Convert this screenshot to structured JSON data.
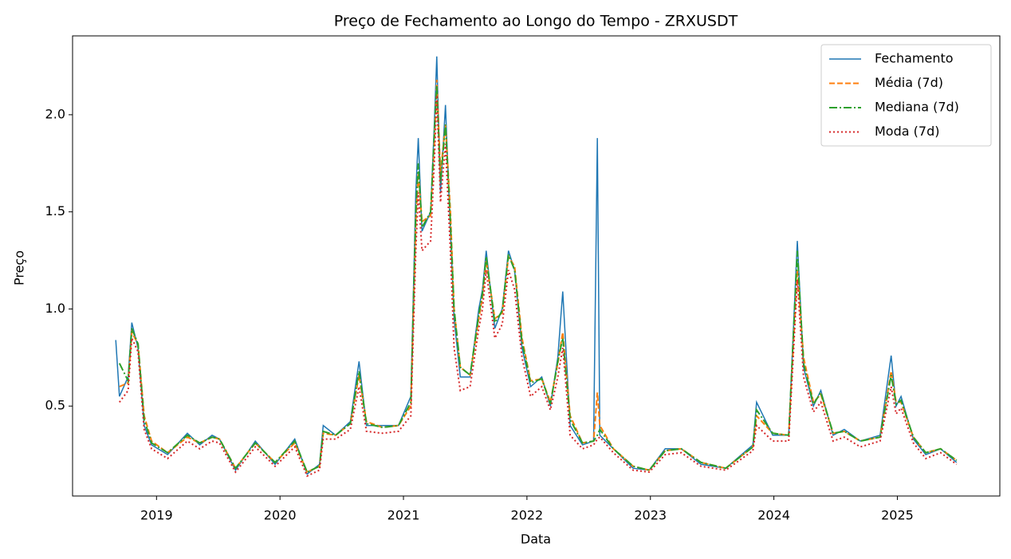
{
  "chart_data": {
    "type": "line",
    "title": "Preço de Fechamento ao Longo do Tempo - ZRXUSDT",
    "xlabel": "Data",
    "ylabel": "Preço",
    "x": [
      2018.67,
      2018.7,
      2018.77,
      2018.8,
      2018.85,
      2018.9,
      2018.96,
      2019.09,
      2019.25,
      2019.35,
      2019.45,
      2019.51,
      2019.64,
      2019.8,
      2019.96,
      2020.12,
      2020.22,
      2020.32,
      2020.35,
      2020.45,
      2020.57,
      2020.64,
      2020.7,
      2020.83,
      2020.96,
      2021.06,
      2021.1,
      2021.12,
      2021.15,
      2021.22,
      2021.25,
      2021.27,
      2021.3,
      2021.34,
      2021.38,
      2021.41,
      2021.46,
      2021.54,
      2021.61,
      2021.64,
      2021.67,
      2021.74,
      2021.8,
      2021.85,
      2021.9,
      2021.96,
      2022.03,
      2022.12,
      2022.19,
      2022.25,
      2022.29,
      2022.35,
      2022.45,
      2022.54,
      2022.57,
      2022.59,
      2022.7,
      2022.86,
      2022.99,
      2023.12,
      2023.25,
      2023.41,
      2023.61,
      2023.83,
      2023.86,
      2023.99,
      2024.12,
      2024.19,
      2024.24,
      2024.32,
      2024.38,
      2024.48,
      2024.57,
      2024.7,
      2024.86,
      2024.95,
      2024.99,
      2025.03,
      2025.13,
      2025.23,
      2025.35,
      2025.48
    ],
    "series": [
      {
        "name": "Fechamento",
        "color": "#1f77b4",
        "dash": "solid",
        "values": [
          0.84,
          0.55,
          0.65,
          0.93,
          0.8,
          0.4,
          0.3,
          0.25,
          0.36,
          0.3,
          0.35,
          0.33,
          0.17,
          0.32,
          0.2,
          0.33,
          0.15,
          0.2,
          0.4,
          0.35,
          0.42,
          0.73,
          0.4,
          0.4,
          0.4,
          0.55,
          1.6,
          1.88,
          1.4,
          1.5,
          1.95,
          2.3,
          1.6,
          2.05,
          1.4,
          0.95,
          0.65,
          0.65,
          1.0,
          1.1,
          1.3,
          0.9,
          1.0,
          1.3,
          1.2,
          0.8,
          0.6,
          0.65,
          0.5,
          0.75,
          1.09,
          0.4,
          0.3,
          0.32,
          1.88,
          0.35,
          0.28,
          0.18,
          0.17,
          0.28,
          0.28,
          0.2,
          0.18,
          0.3,
          0.52,
          0.35,
          0.35,
          1.35,
          0.7,
          0.5,
          0.58,
          0.35,
          0.38,
          0.32,
          0.35,
          0.76,
          0.5,
          0.55,
          0.33,
          0.25,
          0.28,
          0.21
        ]
      },
      {
        "name": "Média (7d)",
        "color": "#ff7f0e",
        "dash": "dashed",
        "values": [
          null,
          0.6,
          0.62,
          0.88,
          0.82,
          0.45,
          0.32,
          0.26,
          0.34,
          0.31,
          0.34,
          0.33,
          0.18,
          0.31,
          0.21,
          0.31,
          0.16,
          0.19,
          0.36,
          0.35,
          0.41,
          0.66,
          0.42,
          0.39,
          0.4,
          0.5,
          1.45,
          1.7,
          1.45,
          1.48,
          1.85,
          2.18,
          1.7,
          1.95,
          1.5,
          1.0,
          0.7,
          0.66,
          0.95,
          1.06,
          1.25,
          0.95,
          0.98,
          1.27,
          1.22,
          0.85,
          0.63,
          0.64,
          0.52,
          0.72,
          0.88,
          0.45,
          0.31,
          0.32,
          0.57,
          0.4,
          0.28,
          0.19,
          0.17,
          0.27,
          0.28,
          0.21,
          0.18,
          0.29,
          0.45,
          0.36,
          0.35,
          1.2,
          0.75,
          0.52,
          0.56,
          0.36,
          0.37,
          0.32,
          0.34,
          0.68,
          0.52,
          0.52,
          0.34,
          0.26,
          0.28,
          0.22
        ]
      },
      {
        "name": "Mediana (7d)",
        "color": "#2ca02c",
        "dash": "dashdot",
        "values": [
          null,
          0.72,
          0.63,
          0.9,
          0.82,
          0.43,
          0.31,
          0.26,
          0.35,
          0.31,
          0.34,
          0.33,
          0.18,
          0.31,
          0.21,
          0.32,
          0.16,
          0.19,
          0.37,
          0.35,
          0.41,
          0.68,
          0.41,
          0.39,
          0.4,
          0.52,
          1.5,
          1.75,
          1.42,
          1.5,
          1.9,
          2.15,
          1.65,
          1.95,
          1.45,
          1.0,
          0.7,
          0.66,
          0.97,
          1.08,
          1.27,
          0.93,
          0.99,
          1.28,
          1.2,
          0.83,
          0.62,
          0.64,
          0.51,
          0.73,
          0.85,
          0.43,
          0.31,
          0.32,
          0.35,
          0.38,
          0.28,
          0.19,
          0.17,
          0.27,
          0.28,
          0.21,
          0.18,
          0.29,
          0.48,
          0.36,
          0.35,
          1.3,
          0.72,
          0.51,
          0.57,
          0.36,
          0.37,
          0.32,
          0.34,
          0.66,
          0.51,
          0.53,
          0.34,
          0.26,
          0.28,
          0.22
        ]
      },
      {
        "name": "Moda (7d)",
        "color": "#d62728",
        "dash": "dotted",
        "values": [
          null,
          0.52,
          0.58,
          0.85,
          0.78,
          0.38,
          0.28,
          0.23,
          0.32,
          0.28,
          0.32,
          0.31,
          0.16,
          0.29,
          0.19,
          0.29,
          0.14,
          0.17,
          0.33,
          0.33,
          0.38,
          0.6,
          0.37,
          0.36,
          0.37,
          0.45,
          1.3,
          1.6,
          1.3,
          1.35,
          1.75,
          2.1,
          1.55,
          1.85,
          1.3,
          0.8,
          0.58,
          0.6,
          0.9,
          1.0,
          1.2,
          0.85,
          0.92,
          1.2,
          1.1,
          0.75,
          0.55,
          0.6,
          0.48,
          0.65,
          0.8,
          0.35,
          0.28,
          0.3,
          0.33,
          0.34,
          0.26,
          0.17,
          0.16,
          0.25,
          0.26,
          0.19,
          0.17,
          0.27,
          0.4,
          0.32,
          0.32,
          1.15,
          0.65,
          0.47,
          0.52,
          0.32,
          0.34,
          0.29,
          0.32,
          0.6,
          0.46,
          0.49,
          0.31,
          0.23,
          0.26,
          0.2
        ]
      }
    ],
    "xlim": [
      2018.32,
      2025.83
    ],
    "xticks": [
      2019,
      2020,
      2021,
      2022,
      2023,
      2024,
      2025
    ],
    "ylim": [
      0.037,
      2.406
    ],
    "yticks": [
      0.5,
      {
        "value": 1,
        "label": "1.0"
      },
      1.5,
      {
        "value": 2,
        "label": "2.0"
      }
    ],
    "grid": false,
    "legend": "upper right"
  }
}
